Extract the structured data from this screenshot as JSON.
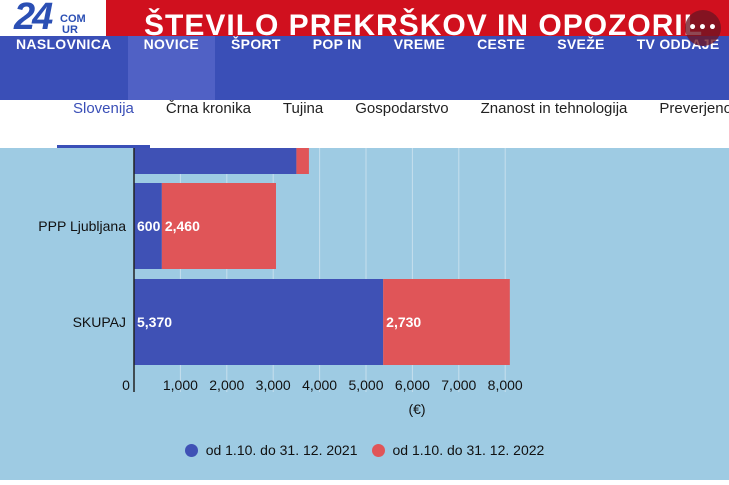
{
  "logo": {
    "number": "24",
    "com": "COM",
    "ur": "UR"
  },
  "headline": "ŠTEVILO PREKRŠKOV IN OPOZORIL",
  "more_button": "•••",
  "main_nav": [
    "NASLOVNICA",
    "NOVICE",
    "ŠPORT",
    "POP IN",
    "VREME",
    "CESTE",
    "SVEŽE",
    "TV ODDAJE"
  ],
  "main_nav_active": "NOVICE",
  "sub_nav": [
    "Slovenija",
    "Črna kronika",
    "Tujina",
    "Gospodarstvo",
    "Znanost in tehnologija",
    "Preverjeno"
  ],
  "sub_nav_active": "Slovenija",
  "colors": {
    "series_2021": "#3f51b5",
    "series_2022": "#e05558",
    "nav": "#3a4fb7",
    "headline": "#d0101e",
    "background": "#9ecbe3"
  },
  "chart_data": {
    "type": "bar",
    "orientation": "horizontal",
    "stacked": true,
    "categories": [
      "",
      "PPP Ljubljana",
      "SKUPAJ"
    ],
    "series": [
      {
        "name": "od 1.10. do 31. 12. 2021",
        "values": [
          3500,
          600,
          5370
        ],
        "labels": [
          "",
          "600",
          "5,370"
        ]
      },
      {
        "name": "od 1.10. do 31. 12. 2022",
        "values": [
          270,
          2460,
          2730
        ],
        "labels": [
          "",
          "2,460",
          "2,730"
        ]
      }
    ],
    "xlim": [
      0,
      8400
    ],
    "xticks": [
      0,
      1000,
      2000,
      3000,
      4000,
      5000,
      6000,
      7000,
      8000
    ],
    "xtick_labels": [
      "0",
      "1,000",
      "2,000",
      "3,000",
      "4,000",
      "5,000",
      "6,000",
      "7,000",
      "8,000"
    ],
    "xlabel": "(€)",
    "grid": true,
    "legend_position": "bottom"
  }
}
